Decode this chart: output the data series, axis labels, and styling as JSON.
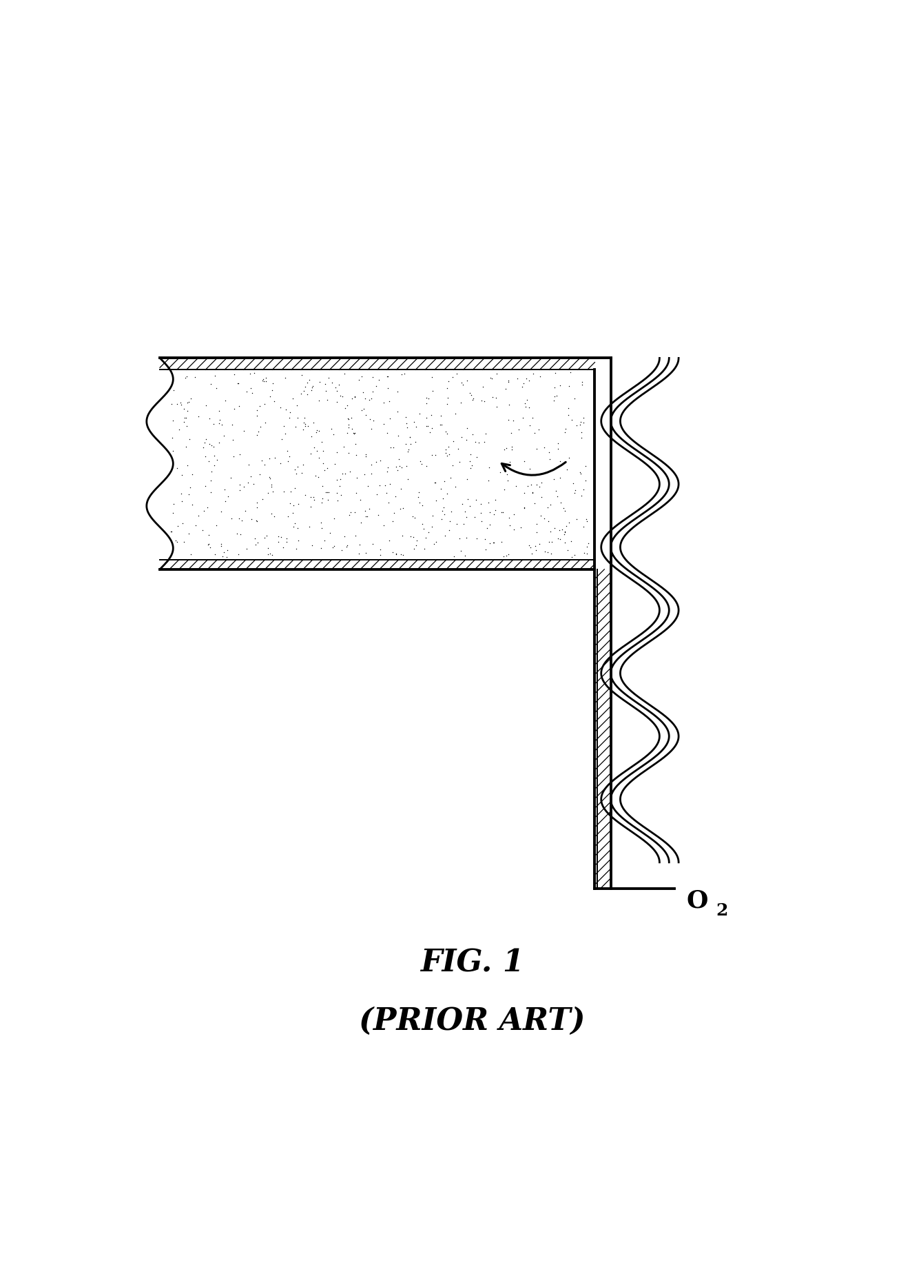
{
  "background_color": "#ffffff",
  "line_color": "#000000",
  "title": "FIG. 1",
  "subtitle": "(PRIOR ART)",
  "title_fontsize": 32,
  "fig_width": 13.37,
  "fig_height": 18.64,
  "dpi": 100,
  "xlim": [
    0,
    13.37
  ],
  "ylim": [
    0,
    18.64
  ]
}
